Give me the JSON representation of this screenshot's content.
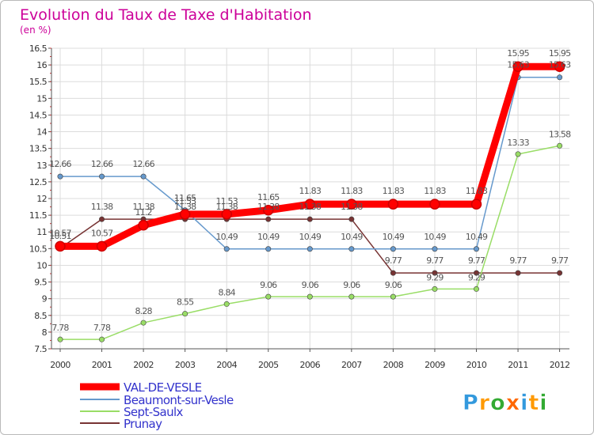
{
  "chart_data": {
    "type": "line",
    "title": "Evolution du Taux de Taxe d'Habitation",
    "subtitle": "(en %)",
    "x": [
      "2000",
      "2001",
      "2002",
      "2003",
      "2004",
      "2005",
      "2006",
      "2007",
      "2008",
      "2009",
      "2010",
      "2011",
      "2012"
    ],
    "ylim": [
      7.5,
      16.5
    ],
    "yticks": [
      "7.5",
      "8",
      "8.5",
      "9",
      "9.5",
      "10",
      "10.5",
      "11",
      "11.5",
      "12",
      "12.5",
      "13",
      "13.5",
      "14",
      "14.5",
      "15",
      "15.5",
      "16",
      "16.5"
    ],
    "grid": true,
    "legend_position": "bottom-left",
    "series": [
      {
        "name": "VAL-DE-VESLE",
        "color": "#ff0000",
        "values": [
          10.57,
          10.57,
          11.2,
          11.53,
          11.53,
          11.65,
          11.83,
          11.83,
          11.83,
          11.83,
          11.83,
          15.95,
          15.95
        ],
        "labels": [
          "10.57",
          "10.57",
          "11.2",
          "11.53",
          "11.53",
          "11.65",
          "11.83",
          "11.83",
          "11.83",
          "11.83",
          "11.83",
          "15.95",
          "15.95"
        ]
      },
      {
        "name": "Beaumont-sur-Vesle",
        "color": "#6699cc",
        "values": [
          12.66,
          12.66,
          12.66,
          11.65,
          10.49,
          10.49,
          10.49,
          10.49,
          10.49,
          10.49,
          10.49,
          15.63,
          15.63
        ],
        "labels": [
          "12.66",
          "12.66",
          "12.66",
          "11.65",
          "10.49",
          "10.49",
          "10.49",
          "10.49",
          "10.49",
          "10.49",
          "10.49",
          "15.63",
          "15.63"
        ]
      },
      {
        "name": "Sept-Saulx",
        "color": "#99dd66",
        "values": [
          7.78,
          7.78,
          8.28,
          8.55,
          8.84,
          9.06,
          9.06,
          9.06,
          9.06,
          9.29,
          9.29,
          13.33,
          13.58
        ],
        "labels": [
          "7.78",
          "7.78",
          "8.28",
          "8.55",
          "8.84",
          "9.06",
          "9.06",
          "9.06",
          "9.06",
          "9.29",
          "9.29",
          "13.33",
          "13.58"
        ]
      },
      {
        "name": "Prunay",
        "color": "#773333",
        "values": [
          10.51,
          11.38,
          11.38,
          11.38,
          11.38,
          11.38,
          11.38,
          11.38,
          9.77,
          9.77,
          9.77,
          9.77,
          9.77
        ],
        "labels": [
          "10.51",
          "11.38",
          "11.38",
          "11.38",
          "11.38",
          "11.38",
          "11.38",
          "11.38",
          "9.77",
          "9.77",
          "9.77",
          "9.77",
          "9.77"
        ]
      }
    ]
  },
  "colors": {
    "title": "#cc0099",
    "legend_text": "#3333cc",
    "grid": "#dcdcdc",
    "axis": "#555555"
  },
  "logo": {
    "text": "Proxiti"
  }
}
